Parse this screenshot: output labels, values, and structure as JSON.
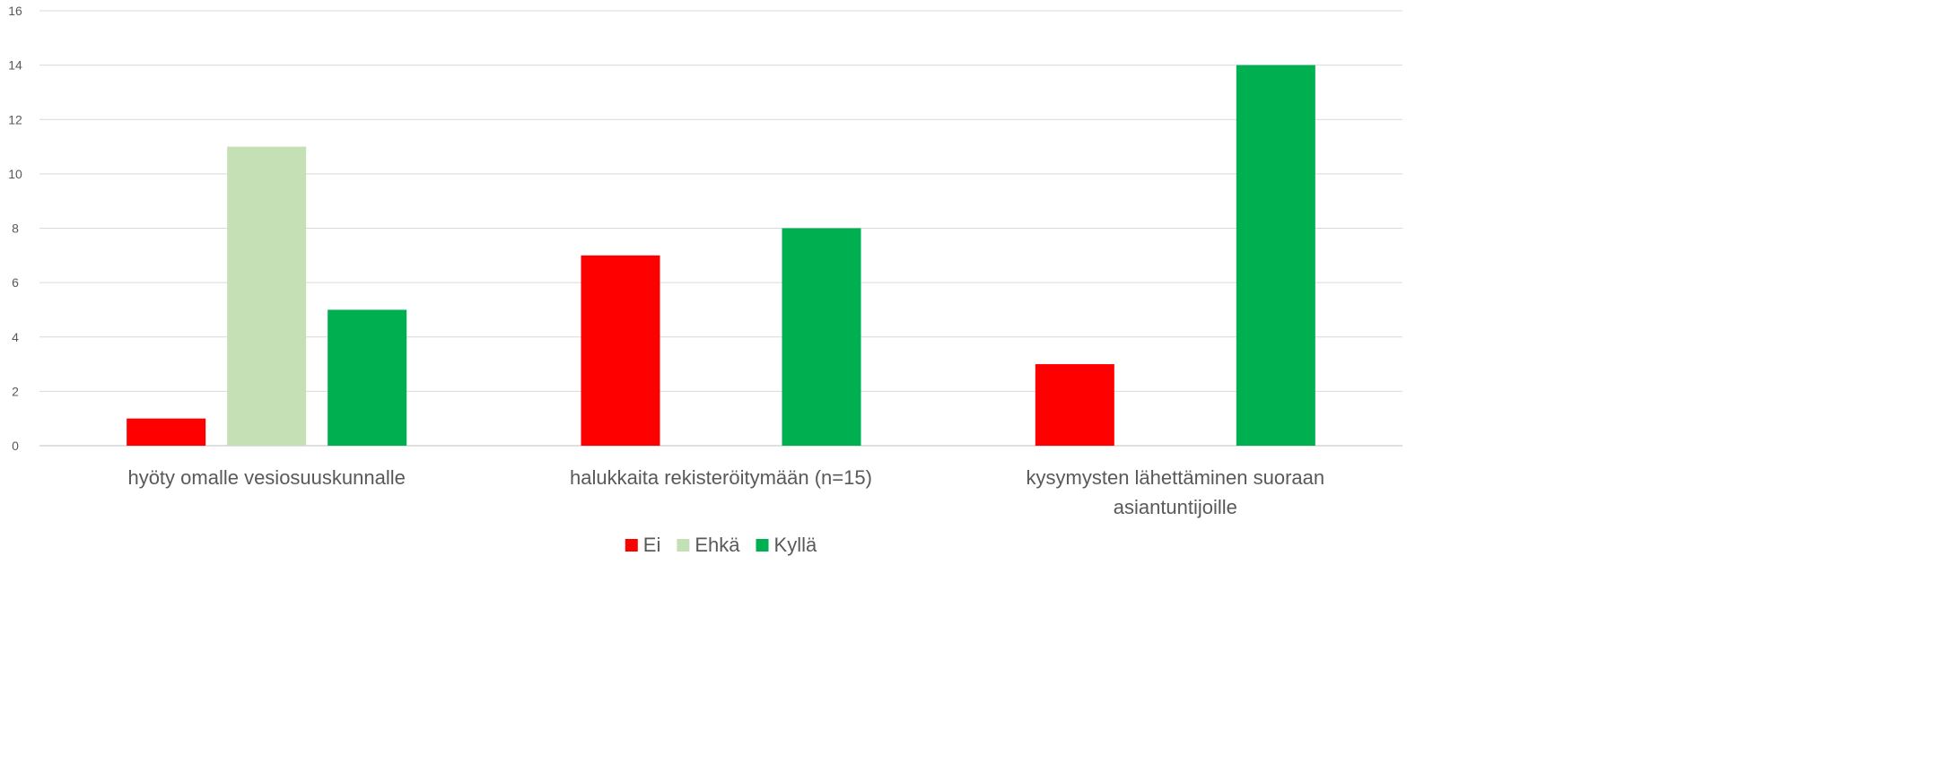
{
  "chart_data": {
    "type": "bar",
    "categories": [
      [
        "hyöty omalle vesiosuuskunnalle"
      ],
      [
        "halukkaita rekisteröitymään (n=15)"
      ],
      [
        "kysymysten lähettäminen suoraan",
        "asiantuntijoille"
      ]
    ],
    "series": [
      {
        "name": "Ei",
        "color": "#FF0000",
        "values": [
          1,
          7,
          3
        ]
      },
      {
        "name": "Ehkä",
        "color": "#C5E0B4",
        "values": [
          11,
          0,
          0
        ]
      },
      {
        "name": "Kyllä",
        "color": "#00B050",
        "values": [
          5,
          8,
          14
        ]
      }
    ],
    "ylim": [
      0,
      16
    ],
    "yticks": [
      0,
      2,
      4,
      6,
      8,
      10,
      12,
      14,
      16
    ],
    "grid": true,
    "legend_position": "bottom",
    "title": "",
    "xlabel": "",
    "ylabel": ""
  }
}
